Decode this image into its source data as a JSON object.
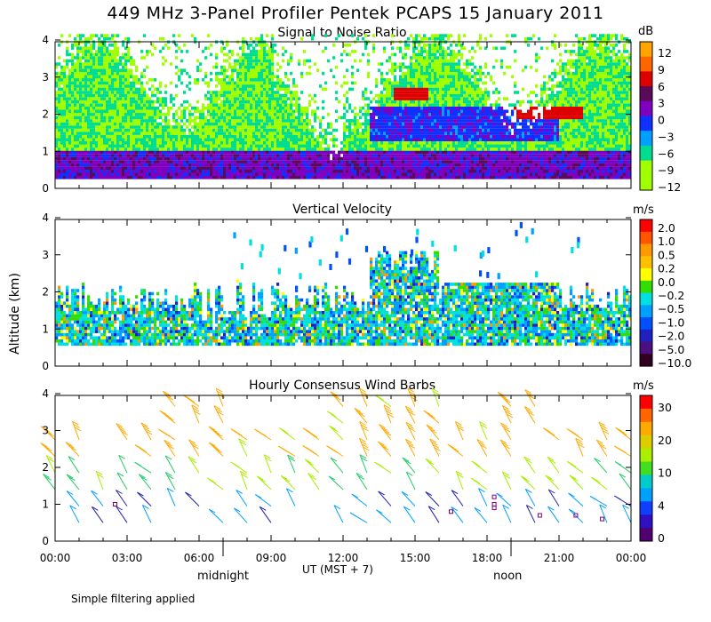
{
  "title": "449 MHz 3-Panel Profiler Pentek PCAPS 15 January 2011",
  "ylabel": "Altitude (km)",
  "xlabel": "UT  (MST + 7)",
  "time_ticks": [
    "00:00",
    "03:00",
    "06:00",
    "09:00",
    "12:00",
    "15:00",
    "18:00",
    "21:00",
    "00:00"
  ],
  "local_labels": [
    "midnight",
    "noon"
  ],
  "altitude_ticks": [
    "0",
    "1",
    "2",
    "3",
    "4"
  ],
  "footnote": "Simple filtering applied",
  "panels": {
    "snr": {
      "title": "Signal to Noise Ratio",
      "unit": "dB",
      "colorbar_labels": [
        "12",
        "9",
        "6",
        "3",
        "0",
        "−3",
        "−6",
        "−9",
        "−12"
      ],
      "colorbar_colors": [
        "#ffa500",
        "#ff6600",
        "#dd0000",
        "#5a0a5a",
        "#8000c0",
        "#1030ff",
        "#00a0ff",
        "#00dd90",
        "#a0ff00",
        "#a0ff00"
      ]
    },
    "vv": {
      "title": "Vertical Velocity",
      "unit": "m/s",
      "colorbar_labels": [
        "2.0",
        "1.0",
        "0.5",
        "0.2",
        "0.0",
        "−0.2",
        "−0.5",
        "−1.0",
        "−2.0",
        "−5.0",
        "−10.0"
      ],
      "colorbar_colors": [
        "#ff0000",
        "#ff5500",
        "#ff9900",
        "#ffc000",
        "#ffff00",
        "#33dd00",
        "#00e0e0",
        "#00a0ff",
        "#0050ff",
        "#2020c0",
        "#4a1080",
        "#300020"
      ]
    },
    "wind": {
      "title": "Hourly Consensus Wind Barbs",
      "unit": "m/s",
      "colorbar_labels": [
        "30",
        "20",
        "10",
        "4",
        "0"
      ],
      "colorbar_colors": [
        "#ff0000",
        "#ff6600",
        "#ffaa00",
        "#ddcc00",
        "#aaee00",
        "#44dd22",
        "#00cccc",
        "#00a0ff",
        "#1040ff",
        "#3010c0",
        "#500070"
      ]
    }
  }
}
